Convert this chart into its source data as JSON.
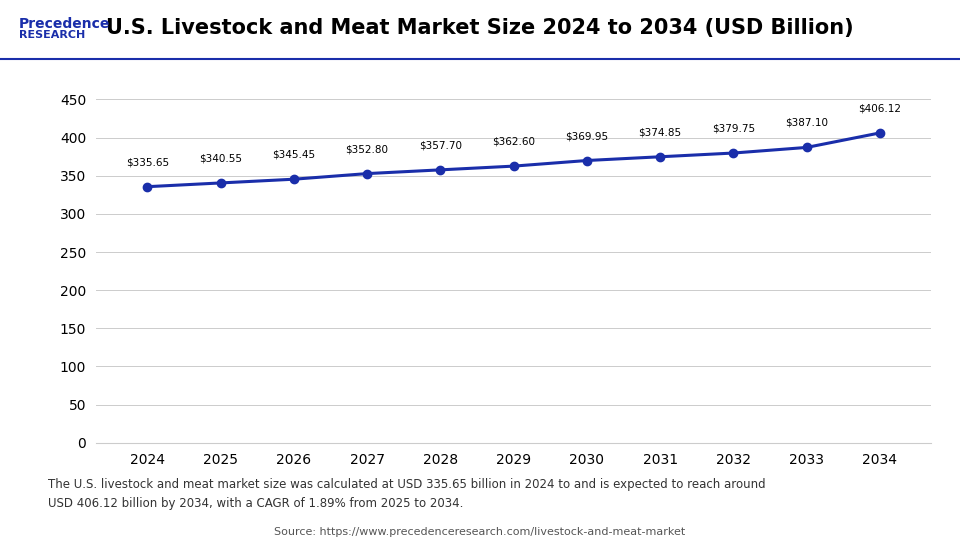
{
  "title": "U.S. Livestock and Meat Market Size 2024 to 2034 (USD Billion)",
  "years": [
    2024,
    2025,
    2026,
    2027,
    2028,
    2029,
    2030,
    2031,
    2032,
    2033,
    2034
  ],
  "values": [
    335.65,
    340.55,
    345.45,
    352.8,
    357.7,
    362.6,
    369.95,
    374.85,
    379.75,
    387.1,
    406.12
  ],
  "labels": [
    "$335.65",
    "$340.55",
    "$345.45",
    "$352.80",
    "$357.70",
    "$362.60",
    "$369.95",
    "$374.85",
    "$379.75",
    "$387.10",
    "$406.12"
  ],
  "line_color": "#1a2eaa",
  "marker_color": "#1a2eaa",
  "bg_color": "#ffffff",
  "plot_bg_color": "#ffffff",
  "yticks": [
    0,
    50,
    100,
    150,
    200,
    250,
    300,
    350,
    400,
    450
  ],
  "ylim": [
    0,
    460
  ],
  "footer_text": "The U.S. livestock and meat market size was calculated at USD 335.65 billion in 2024 to and is expected to reach around\nUSD 406.12 billion by 2034, with a CAGR of 1.89% from 2025 to 2034.",
  "footer_bg": "#dce9f5",
  "source_text": "Source: https://www.precedenceresearch.com/livestock-and-meat-market",
  "title_color": "#000000",
  "label_color": "#000000",
  "tick_color": "#000000",
  "logo_text_1": "Precedence",
  "logo_text_2": "RESEARCH"
}
